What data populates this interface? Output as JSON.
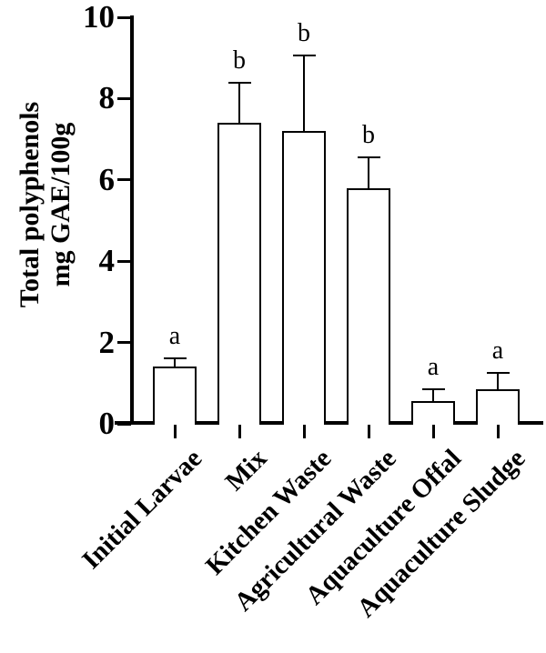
{
  "chart_data": {
    "type": "bar",
    "title": "",
    "ylabel_lines": [
      "Total polyphenols",
      "mg GAE/100g"
    ],
    "ylabel": "Total polyphenols mg GAE/100g",
    "xlabel": "",
    "categories": [
      "Initial Larvae",
      "Mix",
      "Kitchen Waste",
      "Agricultural Waste",
      "Aquaculture Offal",
      "Aquaculture Sludge"
    ],
    "values": [
      1.4,
      7.4,
      7.2,
      5.8,
      0.55,
      0.85
    ],
    "errors_plus": [
      0.2,
      1.0,
      1.85,
      0.75,
      0.3,
      0.4
    ],
    "sig_letters": [
      "a",
      "b",
      "b",
      "b",
      "a",
      "a"
    ],
    "ylim": [
      0,
      10
    ],
    "yticks": [
      0,
      2,
      4,
      6,
      8,
      10
    ],
    "grid": false,
    "legend": false,
    "bar_fill": "#ffffff",
    "line_color": "#000000",
    "background": "#ffffff"
  }
}
